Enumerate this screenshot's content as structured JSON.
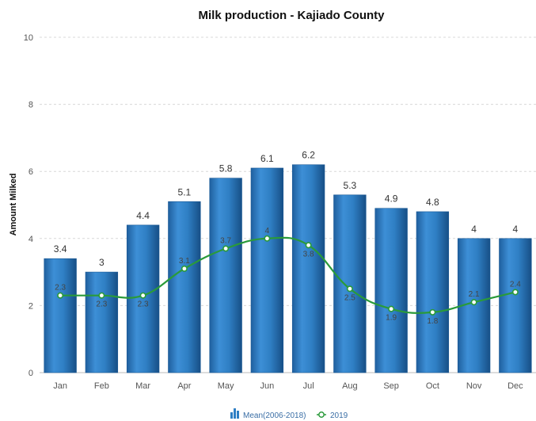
{
  "chart_data": {
    "type": "bar",
    "title": "Milk production - Kajiado County",
    "xlabel": "",
    "ylabel": "Amount Milked",
    "ylim": [
      0,
      10
    ],
    "yticks": [
      0,
      2,
      4,
      6,
      8,
      10
    ],
    "grid": true,
    "legend_position": "bottom-center",
    "categories": [
      "Jan",
      "Feb",
      "Mar",
      "Apr",
      "May",
      "Jun",
      "Jul",
      "Aug",
      "Sep",
      "Oct",
      "Nov",
      "Dec"
    ],
    "series": [
      {
        "name": "Mean(2006-2018)",
        "type": "bar",
        "color": "#2f7fc4",
        "values": [
          3.4,
          3,
          4.4,
          5.1,
          5.8,
          6.1,
          6.2,
          5.3,
          4.9,
          4.8,
          4,
          4
        ],
        "labels": [
          "3.4",
          "3",
          "4.4",
          "5.1",
          "5.8",
          "6.1",
          "6.2",
          "5.3",
          "4.9",
          "4.8",
          "4",
          "4"
        ]
      },
      {
        "name": "2019",
        "type": "line",
        "color": "#2a9a3a",
        "values": [
          2.3,
          2.3,
          2.3,
          3.1,
          3.7,
          4,
          3.8,
          2.5,
          1.9,
          1.8,
          2.1,
          2.4
        ],
        "labels": [
          "2.3",
          "2.3",
          "2.3",
          "3.1",
          "3.7",
          "4",
          "3.8",
          "2.5",
          "1.9",
          "1.8",
          "2.1",
          "2.4"
        ]
      }
    ]
  }
}
